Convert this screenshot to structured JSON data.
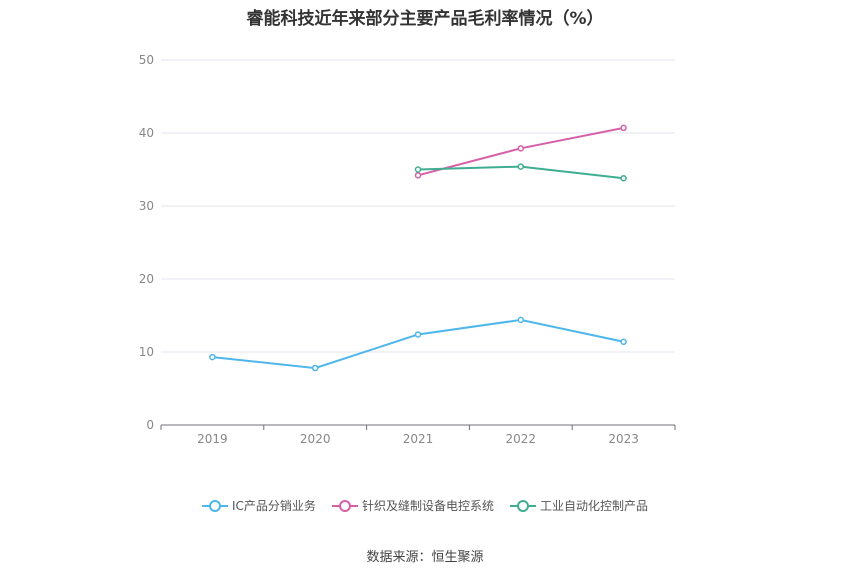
{
  "chart_data": {
    "type": "line",
    "title": "睿能科技近年来部分主要产品毛利率情况（%）",
    "categories": [
      "2019",
      "2020",
      "2021",
      "2022",
      "2023"
    ],
    "ylim": [
      0,
      50
    ],
    "yticks": [
      0,
      10,
      20,
      30,
      40,
      50
    ],
    "grid": true,
    "legend_position": "bottom",
    "series": [
      {
        "name": "IC产品分销业务",
        "color": "#4db6ea",
        "values": [
          9.3,
          7.8,
          12.4,
          14.4,
          11.4
        ]
      },
      {
        "name": "针织及缝制设备电控系统",
        "color": "#d660a8",
        "values": [
          null,
          null,
          34.2,
          37.9,
          40.7
        ]
      },
      {
        "name": "工业自动化控制产品",
        "color": "#3fad92",
        "values": [
          null,
          null,
          35.0,
          35.4,
          33.8
        ]
      }
    ]
  },
  "source": "数据来源：恒生聚源"
}
